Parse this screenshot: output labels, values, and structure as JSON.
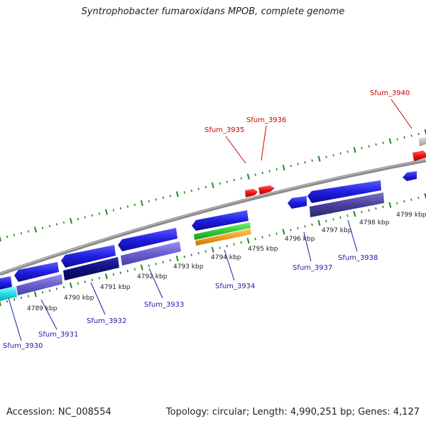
{
  "title": "Syntrophobacter fumaroxidans MPOB, complete genome",
  "footer": {
    "accession": "Accession: NC_008554",
    "summary": "Topology: circular; Length: 4,990,251 bp; Genes: 4,127"
  },
  "tick_labels": [
    "4789 kbp",
    "4790 kbp",
    "4791 kbp",
    "4792 kbp",
    "4793 kbp",
    "4794 kbp",
    "4795 kbp",
    "4796 kbp",
    "4797 kbp",
    "4798 kbp",
    "4799 kbp"
  ],
  "gene_labels_forward": [
    "Sfum_3935",
    "Sfum_3936",
    "Sfum_3940"
  ],
  "gene_labels_reverse": [
    "Sfum_3930",
    "Sfum_3931",
    "Sfum_3932",
    "Sfum_3933",
    "Sfum_3934",
    "Sfum_3937",
    "Sfum_3938"
  ],
  "colors": {
    "backbone": "#8a8a8a",
    "ticks": "#1e8a1e",
    "red_labels": "#cc0000",
    "blue_labels": "#1a1aa8",
    "cds_blue": "#1f1fe0",
    "cds_light": "#6a5fd0",
    "cds_dark": "#10107a",
    "cds_slate": "#4a3f9a",
    "rrna_green": "#33cc33",
    "rrna_orange": "#f0a020",
    "forward_red": "#ee1111",
    "cyan": "#22e0e8",
    "grey": "#bbbbbb"
  }
}
